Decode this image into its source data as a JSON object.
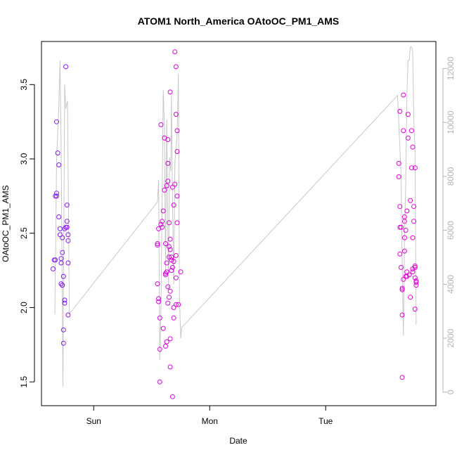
{
  "chart_data": {
    "type": "scatter",
    "title": "ATOM1 North_America OAtoOC_PM1_AMS",
    "xlabel": "Date",
    "ylabel": "OAtoOC_PM1_AMS",
    "x_tick_labels": [
      "Sun",
      "Mon",
      "Tue"
    ],
    "x_tick_positions": [
      1.0,
      2.0,
      3.0
    ],
    "xlim": [
      0.55,
      3.95
    ],
    "ylim": [
      1.34,
      3.79
    ],
    "y_ticks": [
      1.5,
      2.0,
      2.5,
      3.0,
      3.5
    ],
    "y_tick_labels": [
      "1.5",
      "2.0",
      "2.5",
      "3.0",
      "3.5"
    ],
    "y2_lim": [
      -500,
      13000
    ],
    "y2_ticks": [
      0,
      2000,
      4000,
      6000,
      8000,
      10000,
      12000
    ],
    "y2_tick_labels": [
      "0",
      "2000",
      "4000",
      "6000",
      "8000",
      "10000",
      "12000"
    ],
    "grid": false,
    "colors": {
      "early": "#7a1ff0",
      "late": "#e800d8",
      "line": "#c8c8c8",
      "axis": "#000000",
      "right_axis": "#b4b4b4"
    },
    "series": [
      {
        "marker": "circle",
        "points": [
          [
            0.65,
            2.26
          ],
          [
            0.66,
            2.32
          ],
          [
            0.67,
            2.32
          ],
          [
            0.67,
            2.75
          ],
          [
            0.68,
            2.75
          ],
          [
            0.68,
            2.77
          ],
          [
            0.68,
            3.25
          ],
          [
            0.69,
            3.04
          ],
          [
            0.7,
            2.96
          ],
          [
            0.7,
            2.61
          ],
          [
            0.71,
            2.53
          ],
          [
            0.71,
            2.49
          ],
          [
            0.72,
            2.33
          ],
          [
            0.72,
            2.3
          ],
          [
            0.72,
            2.16
          ],
          [
            0.73,
            2.15
          ],
          [
            0.73,
            2.15
          ],
          [
            0.73,
            2.47
          ],
          [
            0.73,
            2.37
          ],
          [
            0.74,
            2.21
          ],
          [
            0.74,
            1.85
          ],
          [
            0.74,
            1.76
          ],
          [
            0.75,
            2.05
          ],
          [
            0.75,
            2.03
          ],
          [
            0.75,
            2.53
          ],
          [
            0.76,
            3.62
          ],
          [
            0.77,
            2.58
          ],
          [
            0.77,
            2.69
          ],
          [
            0.77,
            2.54
          ],
          [
            0.78,
            2.49
          ],
          [
            0.78,
            2.45
          ],
          [
            0.78,
            2.3
          ],
          [
            0.78,
            1.95
          ],
          [
            0.76,
            2.54
          ]
        ]
      },
      {
        "marker": "circle",
        "points": [
          [
            1.55,
            2.42
          ],
          [
            1.55,
            2.43
          ],
          [
            1.55,
            2.16
          ],
          [
            1.56,
            2.53
          ],
          [
            1.56,
            2.06
          ],
          [
            1.56,
            2.04
          ],
          [
            1.57,
            1.93
          ],
          [
            1.57,
            1.72
          ],
          [
            1.57,
            1.5
          ],
          [
            1.58,
            3.23
          ],
          [
            1.58,
            2.56
          ],
          [
            1.59,
            2.58
          ],
          [
            1.59,
            2.54
          ],
          [
            1.6,
            1.86
          ],
          [
            1.6,
            2.65
          ],
          [
            1.61,
            2.79
          ],
          [
            1.61,
            3.14
          ],
          [
            1.62,
            2.43
          ],
          [
            1.62,
            2.22
          ],
          [
            1.62,
            2.23
          ],
          [
            1.62,
            1.74
          ],
          [
            1.63,
            1.77
          ],
          [
            1.63,
            2.24
          ],
          [
            1.63,
            2.3
          ],
          [
            1.63,
            2.82
          ],
          [
            1.64,
            2.85
          ],
          [
            1.64,
            2.97
          ],
          [
            1.64,
            3.13
          ],
          [
            1.64,
            2.03
          ],
          [
            1.64,
            2.14
          ],
          [
            1.65,
            2.07
          ],
          [
            1.65,
            2.34
          ],
          [
            1.65,
            2.41
          ],
          [
            1.65,
            2.57
          ],
          [
            1.66,
            2.39
          ],
          [
            1.66,
            2.46
          ],
          [
            1.66,
            3.45
          ],
          [
            1.66,
            1.6
          ],
          [
            1.66,
            1.79
          ],
          [
            1.66,
            2.11
          ],
          [
            1.67,
            2.25
          ],
          [
            1.67,
            2.34
          ],
          [
            1.67,
            2.32
          ],
          [
            1.68,
            1.4
          ],
          [
            1.68,
            2.27
          ],
          [
            1.68,
            2.81
          ],
          [
            1.69,
            2.31
          ],
          [
            1.69,
            2.0
          ],
          [
            1.69,
            1.93
          ],
          [
            1.69,
            2.69
          ],
          [
            1.7,
            2.83
          ],
          [
            1.7,
            3.72
          ],
          [
            1.71,
            3.62
          ],
          [
            1.71,
            3.3
          ],
          [
            1.71,
            2.2
          ],
          [
            1.71,
            2.35
          ],
          [
            1.71,
            2.02
          ],
          [
            1.72,
            2.75
          ],
          [
            1.72,
            2.57
          ],
          [
            1.72,
            3.05
          ],
          [
            1.72,
            3.19
          ],
          [
            1.73,
            2.02
          ],
          [
            1.75,
            2.24
          ]
        ]
      },
      {
        "marker": "circle",
        "points": [
          [
            3.63,
            2.97
          ],
          [
            3.63,
            2.88
          ],
          [
            3.64,
            3.32
          ],
          [
            3.64,
            2.68
          ],
          [
            3.64,
            2.54
          ],
          [
            3.64,
            2.36
          ],
          [
            3.65,
            2.27
          ],
          [
            3.65,
            2.54
          ],
          [
            3.66,
            2.12
          ],
          [
            3.66,
            2.13
          ],
          [
            3.66,
            1.95
          ],
          [
            3.66,
            1.53
          ],
          [
            3.67,
            2.19
          ],
          [
            3.67,
            3.43
          ],
          [
            3.67,
            3.19
          ],
          [
            3.68,
            2.47
          ],
          [
            3.68,
            2.38
          ],
          [
            3.68,
            2.58
          ],
          [
            3.68,
            2.61
          ],
          [
            3.69,
            2.52
          ],
          [
            3.69,
            2.21
          ],
          [
            3.7,
            2.21
          ],
          [
            3.7,
            2.65
          ],
          [
            3.7,
            2.24
          ],
          [
            3.71,
            3.3
          ],
          [
            3.71,
            3.14
          ],
          [
            3.72,
            2.22
          ],
          [
            3.73,
            2.72
          ],
          [
            3.73,
            2.07
          ],
          [
            3.74,
            3.19
          ],
          [
            3.74,
            2.94
          ],
          [
            3.75,
            3.08
          ],
          [
            3.75,
            2.26
          ],
          [
            3.75,
            2.24
          ],
          [
            3.76,
            2.68
          ],
          [
            3.76,
            2.58
          ],
          [
            3.77,
            2.94
          ],
          [
            3.77,
            2.28
          ],
          [
            3.77,
            2.27
          ],
          [
            3.77,
            2.2
          ],
          [
            3.78,
            2.18
          ],
          [
            3.78,
            2.15
          ],
          [
            3.77,
            1.99
          ],
          [
            3.75,
            2.47
          ],
          [
            3.78,
            2.17
          ]
        ]
      }
    ],
    "line_series": {
      "axis": "right",
      "points": [
        [
          0.665,
          2900
        ],
        [
          0.68,
          8600
        ],
        [
          0.7,
          10600
        ],
        [
          0.71,
          12300
        ],
        [
          0.72,
          9000
        ],
        [
          0.735,
          200
        ],
        [
          0.75,
          11400
        ],
        [
          0.76,
          10500
        ],
        [
          0.775,
          10800
        ],
        [
          0.79,
          2900
        ],
        [
          1.55,
          7050
        ],
        [
          1.56,
          7850
        ],
        [
          1.57,
          1200
        ],
        [
          1.58,
          3000
        ],
        [
          1.6,
          11200
        ],
        [
          1.61,
          9800
        ],
        [
          1.62,
          4500
        ],
        [
          1.63,
          10100
        ],
        [
          1.645,
          3800
        ],
        [
          1.655,
          8700
        ],
        [
          1.665,
          8200
        ],
        [
          1.67,
          11000
        ],
        [
          1.68,
          7000
        ],
        [
          1.69,
          4000
        ],
        [
          1.7,
          8500
        ],
        [
          1.71,
          9000
        ],
        [
          1.72,
          9600
        ],
        [
          1.73,
          11800
        ],
        [
          1.74,
          3500
        ],
        [
          1.75,
          2000
        ],
        [
          1.76,
          2400
        ],
        [
          3.62,
          11000
        ],
        [
          3.63,
          10000
        ],
        [
          3.65,
          8000
        ],
        [
          3.66,
          4600
        ],
        [
          3.67,
          2100
        ],
        [
          3.68,
          5800
        ],
        [
          3.69,
          7800
        ],
        [
          3.7,
          11100
        ],
        [
          3.71,
          12300
        ],
        [
          3.72,
          12300
        ],
        [
          3.73,
          12800
        ],
        [
          3.74,
          12800
        ],
        [
          3.75,
          12600
        ],
        [
          3.76,
          10000
        ],
        [
          3.77,
          9000
        ],
        [
          3.78,
          2500
        ]
      ]
    }
  }
}
